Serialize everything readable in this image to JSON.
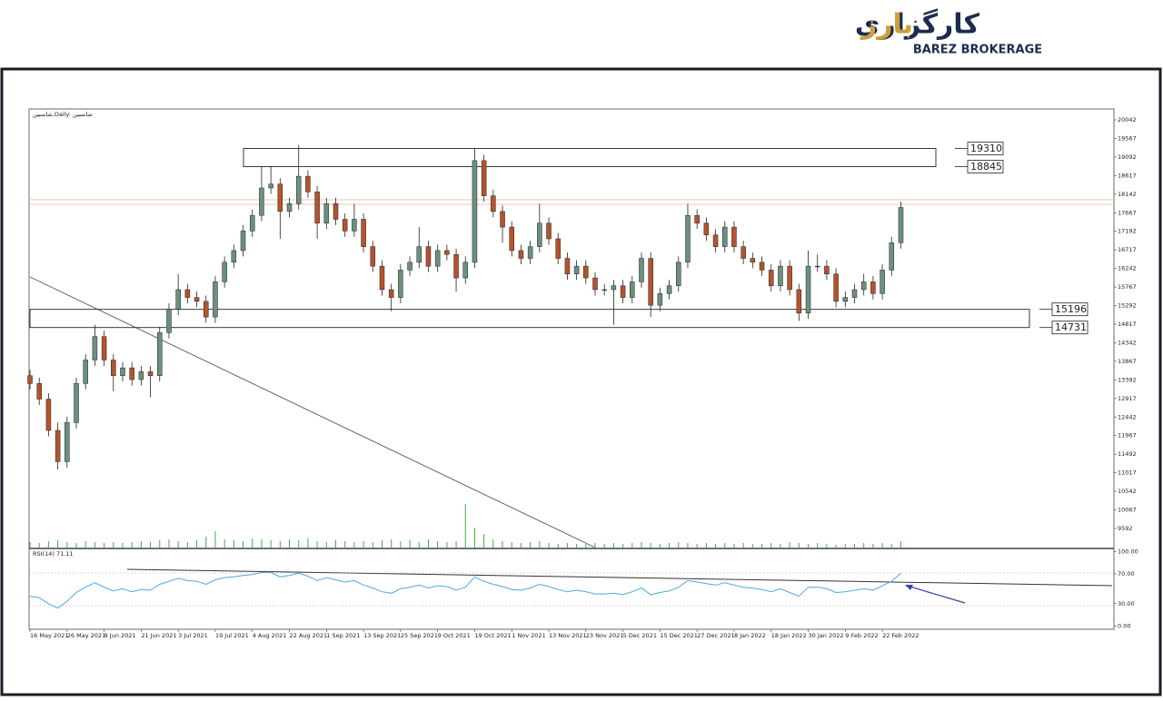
{
  "logo": {
    "name_fa_1": "کارگزاری",
    "name_fa_2": "بارز",
    "name_en": "BAREZ BROKERAGE"
  },
  "chart_data": {
    "type": "candlestick",
    "title": "شاسبين,Daily: شاسبين",
    "up_color": "#6b9080",
    "down_color": "#b5532d",
    "ylim": [
      9104,
      20321
    ],
    "yticks": [
      20042,
      19567,
      19092,
      18617,
      18142,
      17667,
      17192,
      16717,
      16242,
      15767,
      15292,
      14817,
      14342,
      13867,
      13392,
      12917,
      12442,
      11967,
      11492,
      11017,
      10542,
      10067,
      9592
    ],
    "xlim": [
      -0.1,
      117
    ],
    "xticks": [
      {
        "value": 0,
        "label": "16 May 2021"
      },
      {
        "value": 4,
        "label": "26 May 2021"
      },
      {
        "value": 8,
        "label": "9 Jun 2021"
      },
      {
        "value": 12,
        "label": "21 Jun 2021"
      },
      {
        "value": 16,
        "label": "3 Jul 2021"
      },
      {
        "value": 20,
        "label": "19 Jul 2021"
      },
      {
        "value": 24,
        "label": "4 Aug 2021"
      },
      {
        "value": 28,
        "label": "22 Aug 2021"
      },
      {
        "value": 32,
        "label": "1 Sep 2021"
      },
      {
        "value": 36,
        "label": "13 Sep 2021"
      },
      {
        "value": 40,
        "label": "25 Sep 2021"
      },
      {
        "value": 44,
        "label": "9 Oct 2021"
      },
      {
        "value": 48,
        "label": "19 Oct 2021"
      },
      {
        "value": 52,
        "label": "1 Nov 2021"
      },
      {
        "value": 56,
        "label": "13 Nov 2021"
      },
      {
        "value": 60,
        "label": "23 Nov 2021"
      },
      {
        "value": 64,
        "label": "5 Dec 2021"
      },
      {
        "value": 68,
        "label": "15 Dec 2021"
      },
      {
        "value": 72,
        "label": "27 Dec 2021"
      },
      {
        "value": 76,
        "label": "8 Jan 2022"
      },
      {
        "value": 80,
        "label": "18 Jan 2022"
      },
      {
        "value": 84,
        "label": "30 Jan 2022"
      },
      {
        "value": 88,
        "label": "9 Feb 2022"
      },
      {
        "value": 92,
        "label": "22 Feb 2022"
      }
    ],
    "ohlc": [
      [
        13500,
        13650,
        13150,
        13300
      ],
      [
        13300,
        13450,
        12750,
        12900
      ],
      [
        12900,
        13050,
        11950,
        12100
      ],
      [
        12100,
        12300,
        11100,
        11300
      ],
      [
        11300,
        12450,
        11150,
        12300
      ],
      [
        12300,
        13450,
        12150,
        13300
      ],
      [
        13300,
        14050,
        13150,
        13900
      ],
      [
        13900,
        14800,
        13750,
        14500
      ],
      [
        14500,
        14650,
        13750,
        13900
      ],
      [
        13900,
        14050,
        13100,
        13500
      ],
      [
        13500,
        13850,
        13350,
        13700
      ],
      [
        13700,
        13850,
        13250,
        13400
      ],
      [
        13400,
        13750,
        13250,
        13600
      ],
      [
        13600,
        13750,
        12950,
        13500
      ],
      [
        13500,
        14750,
        13350,
        14600
      ],
      [
        14600,
        15350,
        14450,
        15200
      ],
      [
        15200,
        16100,
        15050,
        15700
      ],
      [
        15700,
        15850,
        15350,
        15500
      ],
      [
        15500,
        15650,
        15250,
        15400
      ],
      [
        15400,
        15550,
        14850,
        15000
      ],
      [
        15000,
        16050,
        14850,
        15900
      ],
      [
        15900,
        16550,
        15750,
        16400
      ],
      [
        16400,
        16850,
        16250,
        16700
      ],
      [
        16700,
        17350,
        16550,
        17200
      ],
      [
        17200,
        17750,
        17050,
        17600
      ],
      [
        17600,
        18850,
        17450,
        18300
      ],
      [
        18300,
        18850,
        18150,
        18400
      ],
      [
        18400,
        18550,
        17000,
        17700
      ],
      [
        17700,
        18050,
        17550,
        17900
      ],
      [
        17900,
        19400,
        17750,
        18600
      ],
      [
        18600,
        18750,
        18050,
        18200
      ],
      [
        18200,
        18350,
        17000,
        17400
      ],
      [
        17400,
        18050,
        17250,
        17900
      ],
      [
        17900,
        18050,
        17350,
        17500
      ],
      [
        17500,
        17650,
        17050,
        17200
      ],
      [
        17200,
        17900,
        17050,
        17500
      ],
      [
        17500,
        17650,
        16650,
        16800
      ],
      [
        16800,
        16950,
        16150,
        16300
      ],
      [
        16300,
        16450,
        15550,
        15700
      ],
      [
        15700,
        15850,
        15150,
        15500
      ],
      [
        15500,
        16350,
        15350,
        16200
      ],
      [
        16200,
        16550,
        16050,
        16400
      ],
      [
        16400,
        17300,
        16250,
        16800
      ],
      [
        16800,
        16950,
        16150,
        16300
      ],
      [
        16300,
        16850,
        16150,
        16700
      ],
      [
        16700,
        16850,
        16450,
        16600
      ],
      [
        16600,
        16750,
        15650,
        16000
      ],
      [
        16000,
        16550,
        15850,
        16400
      ],
      [
        16400,
        19300,
        16250,
        19000
      ],
      [
        19000,
        19150,
        17950,
        18100
      ],
      [
        18100,
        18250,
        17550,
        17700
      ],
      [
        17700,
        17850,
        16900,
        17300
      ],
      [
        17300,
        17450,
        16550,
        16700
      ],
      [
        16700,
        16850,
        16350,
        16500
      ],
      [
        16500,
        16950,
        16350,
        16800
      ],
      [
        16800,
        17900,
        16650,
        17400
      ],
      [
        17400,
        17550,
        16850,
        17000
      ],
      [
        17000,
        17150,
        16350,
        16500
      ],
      [
        16500,
        16650,
        15950,
        16100
      ],
      [
        16100,
        16450,
        15950,
        16300
      ],
      [
        16300,
        16450,
        15850,
        16000
      ],
      [
        16000,
        16150,
        15550,
        15700
      ],
      [
        15700,
        15850,
        15550,
        15700
      ],
      [
        15700,
        15950,
        14800,
        15800
      ],
      [
        15800,
        15950,
        15350,
        15500
      ],
      [
        15500,
        16050,
        15350,
        15900
      ],
      [
        15900,
        16650,
        15750,
        16500
      ],
      [
        16500,
        16650,
        15000,
        15300
      ],
      [
        15300,
        15750,
        15150,
        15600
      ],
      [
        15600,
        15950,
        15450,
        15800
      ],
      [
        15800,
        16550,
        15650,
        16400
      ],
      [
        16400,
        17900,
        16250,
        17600
      ],
      [
        17600,
        17750,
        17250,
        17400
      ],
      [
        17400,
        17550,
        16950,
        17100
      ],
      [
        17100,
        17250,
        16650,
        16800
      ],
      [
        16800,
        17450,
        16650,
        17300
      ],
      [
        17300,
        17450,
        16650,
        16800
      ],
      [
        16800,
        16950,
        16350,
        16500
      ],
      [
        16500,
        16650,
        16250,
        16400
      ],
      [
        16400,
        16550,
        16050,
        16200
      ],
      [
        16200,
        16350,
        15650,
        15800
      ],
      [
        15800,
        16450,
        15650,
        16300
      ],
      [
        16300,
        16450,
        15550,
        15700
      ],
      [
        15700,
        15850,
        14900,
        15100
      ],
      [
        15100,
        16700,
        14950,
        16300
      ],
      [
        16300,
        16600,
        16150,
        16300
      ],
      [
        16300,
        16450,
        15950,
        16100
      ],
      [
        16100,
        16250,
        15250,
        15400
      ],
      [
        15400,
        15650,
        15250,
        15500
      ],
      [
        15500,
        15850,
        15350,
        15700
      ],
      [
        15700,
        16100,
        15550,
        15900
      ],
      [
        15900,
        16050,
        15450,
        15600
      ],
      [
        15600,
        16350,
        15450,
        16200
      ],
      [
        16200,
        17050,
        16050,
        16900
      ],
      [
        16900,
        17950,
        16750,
        17800
      ]
    ],
    "levels": [
      19310,
      18845,
      15196,
      14731
    ],
    "volume": {
      "color": "#3cb043",
      "ylim": [
        0,
        100
      ],
      "values": [
        6,
        5,
        7,
        8,
        6,
        5,
        7,
        6,
        5,
        6,
        5,
        6,
        7,
        6,
        8,
        9,
        7,
        6,
        8,
        12,
        18,
        9,
        8,
        7,
        10,
        9,
        8,
        7,
        9,
        8,
        10,
        7,
        6,
        8,
        7,
        6,
        7,
        6,
        8,
        9,
        7,
        8,
        6,
        9,
        7,
        6,
        7,
        48,
        22,
        15,
        9,
        7,
        6,
        5,
        6,
        7,
        5,
        4,
        5,
        4,
        4,
        5,
        4,
        5,
        4,
        5,
        6,
        5,
        4,
        5,
        6,
        5,
        4,
        5,
        4,
        5,
        4,
        5,
        4,
        4,
        5,
        4,
        6,
        5,
        4,
        5,
        4,
        3,
        4,
        4,
        5,
        4,
        5,
        4,
        7
      ]
    },
    "rsi": {
      "label": "RSI(14) 71.11",
      "color": "#4da6e8",
      "ylim": [
        -4.5,
        103
      ],
      "yticks": [
        {
          "value": 100,
          "label": "100.00"
        },
        {
          "value": 70,
          "label": "70.00"
        },
        {
          "value": 30,
          "label": "30.00"
        },
        {
          "value": 0,
          "label": "0.00"
        }
      ],
      "values": [
        40,
        38,
        30,
        24,
        33,
        45,
        52,
        58,
        52,
        47,
        50,
        46,
        49,
        48,
        56,
        60,
        64,
        61,
        60,
        56,
        62,
        65,
        66,
        68,
        69,
        72,
        72,
        66,
        68,
        71,
        67,
        61,
        65,
        62,
        59,
        61,
        55,
        51,
        46,
        44,
        50,
        52,
        55,
        51,
        54,
        53,
        48,
        52,
        66,
        60,
        56,
        53,
        49,
        48,
        51,
        56,
        53,
        49,
        46,
        48,
        46,
        43,
        43,
        44,
        42,
        46,
        51,
        42,
        45,
        47,
        52,
        61,
        59,
        57,
        55,
        58,
        55,
        52,
        51,
        49,
        46,
        50,
        45,
        40,
        52,
        52,
        50,
        45,
        46,
        48,
        50,
        48,
        54,
        60,
        71.11
      ]
    }
  }
}
